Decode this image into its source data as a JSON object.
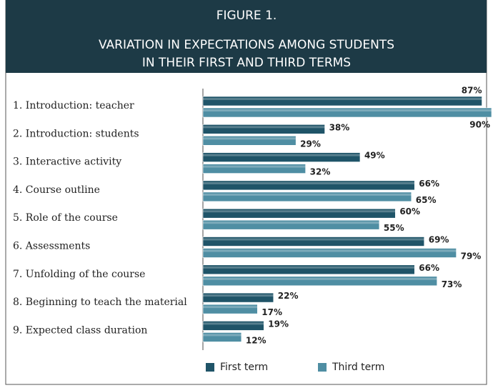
{
  "chart_data": {
    "type": "hbar",
    "figure_label": "FIGURE 1.",
    "title": [
      "VARIATION IN EXPECTATIONS AMONG STUDENTS",
      "IN THEIR FIRST AND THIRD TERMS"
    ],
    "categories": [
      "1. Introduction: teacher",
      "2. Introduction: students",
      "3. Interactive activity",
      "4. Course outline",
      "5. Role of the course",
      "6. Assessments",
      "7. Unfolding of the course",
      "8. Beginning to teach the material",
      "9. Expected class duration"
    ],
    "xlim": [
      0,
      90
    ],
    "series": [
      {
        "name": "First term",
        "color": "#1f5468",
        "values": [
          87,
          38,
          49,
          66,
          60,
          69,
          66,
          22,
          19
        ],
        "value_labels": [
          "87%",
          "38%",
          "49%",
          "66%",
          "60%",
          "69%",
          "66%",
          "22%",
          "19%"
        ]
      },
      {
        "name": "Third term",
        "color": "#4f8ea3",
        "values": [
          90,
          29,
          32,
          65,
          55,
          79,
          73,
          17,
          12
        ],
        "value_labels": [
          "90%",
          "29%",
          "32%",
          "65%",
          "55%",
          "79%",
          "73%",
          "17%",
          "12%"
        ]
      }
    ]
  }
}
